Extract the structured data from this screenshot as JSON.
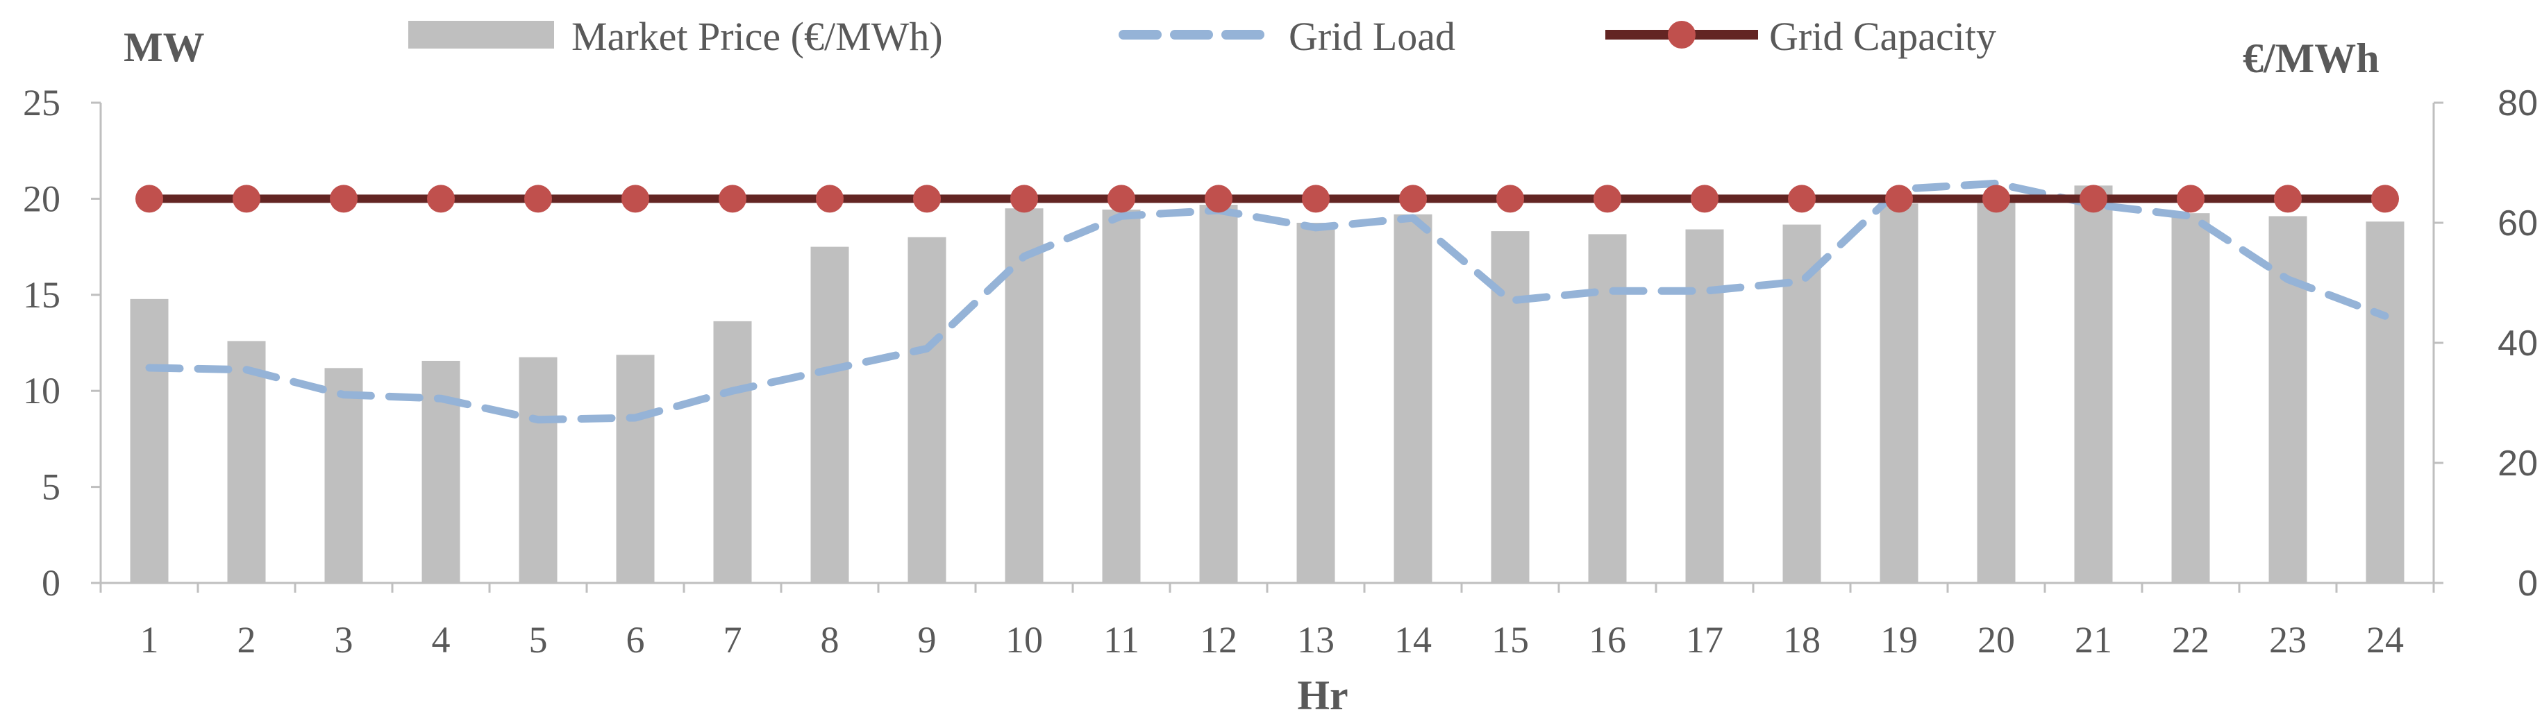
{
  "chart_data": {
    "type": "bar+line",
    "categories": [
      "1",
      "2",
      "3",
      "4",
      "5",
      "6",
      "7",
      "8",
      "9",
      "10",
      "11",
      "12",
      "13",
      "14",
      "15",
      "16",
      "17",
      "18",
      "19",
      "20",
      "21",
      "22",
      "23",
      "24"
    ],
    "xlabel": "Hr",
    "ylabel_left": "MW",
    "ylabel_right": "€/MWh",
    "ylim_left": [
      0,
      25
    ],
    "ylim_right": [
      0,
      80
    ],
    "yticks_left": [
      "0",
      "5",
      "10",
      "15",
      "20",
      "25"
    ],
    "yticks_right": [
      "0",
      "20",
      "40",
      "60",
      "80"
    ],
    "series": [
      {
        "name": "Market Price (€/MWh)",
        "kind": "bar",
        "axis": "right",
        "color": "#bfbfbf",
        "values": [
          47.3,
          40.3,
          35.8,
          37.0,
          37.6,
          38.0,
          43.6,
          56.0,
          57.6,
          62.4,
          62.2,
          63.0,
          60.0,
          61.4,
          58.6,
          58.1,
          58.9,
          59.7,
          63.2,
          64.0,
          66.2,
          61.6,
          61.1,
          60.2
        ]
      },
      {
        "name": "Grid Load",
        "kind": "line",
        "style": "dashed",
        "axis": "left",
        "color": "#95b3d7",
        "values": [
          11.2,
          11.1,
          9.8,
          9.6,
          8.5,
          8.6,
          10.0,
          11.1,
          12.2,
          17.0,
          19.1,
          19.4,
          18.5,
          19.0,
          14.7,
          15.2,
          15.2,
          15.7,
          20.5,
          20.8,
          19.7,
          19.1,
          15.8,
          13.9
        ]
      },
      {
        "name": "Grid Capacity",
        "kind": "line",
        "style": "solid-marker",
        "axis": "left",
        "color": "#632523",
        "marker_color": "#c0504d",
        "values": [
          20,
          20,
          20,
          20,
          20,
          20,
          20,
          20,
          20,
          20,
          20,
          20,
          20,
          20,
          20,
          20,
          20,
          20,
          20,
          20,
          20,
          20,
          20,
          20
        ]
      }
    ],
    "legend_placement": "top-center",
    "grid": false
  }
}
